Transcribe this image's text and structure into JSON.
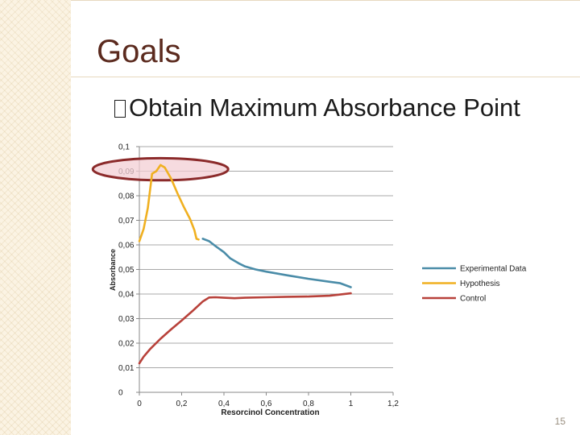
{
  "slide": {
    "title": "Goals",
    "bullet": "Obtain Maximum Absorbance Point",
    "page_number": "15"
  },
  "chart_data": {
    "type": "line",
    "xlabel": "Resorcinol Concentration",
    "ylabel": "Absorbance",
    "xlim": [
      0,
      1.2
    ],
    "ylim": [
      0,
      0.1
    ],
    "x_ticks": [
      "0",
      "0,2",
      "0,4",
      "0,6",
      "0,8",
      "1",
      "1,2"
    ],
    "y_ticks": [
      "0",
      "0,01",
      "0,02",
      "0,03",
      "0,04",
      "0,05",
      "0,06",
      "0,07",
      "0,08",
      "0,09",
      "0,1"
    ],
    "grid": "horizontal",
    "legend_position": "right",
    "series": [
      {
        "name": "Experimental Data",
        "color": "#4a8ca8",
        "points": [
          [
            0.3,
            0.0625
          ],
          [
            0.33,
            0.0615
          ],
          [
            0.36,
            0.0595
          ],
          [
            0.4,
            0.057
          ],
          [
            0.43,
            0.0545
          ],
          [
            0.47,
            0.0525
          ],
          [
            0.5,
            0.0512
          ],
          [
            0.55,
            0.05
          ],
          [
            0.6,
            0.0491
          ],
          [
            0.7,
            0.0476
          ],
          [
            0.8,
            0.0462
          ],
          [
            0.9,
            0.045
          ],
          [
            0.95,
            0.0444
          ],
          [
            1.0,
            0.0428
          ]
        ]
      },
      {
        "name": "Hypothesis",
        "color": "#f0b020",
        "points": [
          [
            0.0,
            0.0615
          ],
          [
            0.02,
            0.0665
          ],
          [
            0.04,
            0.075
          ],
          [
            0.06,
            0.089
          ],
          [
            0.08,
            0.09
          ],
          [
            0.1,
            0.0925
          ],
          [
            0.12,
            0.0915
          ],
          [
            0.15,
            0.087
          ],
          [
            0.18,
            0.081
          ],
          [
            0.21,
            0.0755
          ],
          [
            0.24,
            0.0705
          ],
          [
            0.26,
            0.066
          ],
          [
            0.27,
            0.0625
          ],
          [
            0.28,
            0.0622
          ]
        ]
      },
      {
        "name": "Control",
        "color": "#b8413a",
        "points": [
          [
            0.0,
            0.0118
          ],
          [
            0.02,
            0.0145
          ],
          [
            0.05,
            0.0175
          ],
          [
            0.1,
            0.0218
          ],
          [
            0.15,
            0.0256
          ],
          [
            0.2,
            0.0292
          ],
          [
            0.25,
            0.033
          ],
          [
            0.3,
            0.037
          ],
          [
            0.33,
            0.0386
          ],
          [
            0.36,
            0.0387
          ],
          [
            0.4,
            0.0385
          ],
          [
            0.45,
            0.0383
          ],
          [
            0.5,
            0.0385
          ],
          [
            0.6,
            0.0387
          ],
          [
            0.7,
            0.0389
          ],
          [
            0.8,
            0.039
          ],
          [
            0.9,
            0.0393
          ],
          [
            1.0,
            0.0403
          ]
        ]
      }
    ],
    "highlight": {
      "shape": "ellipse",
      "center": [
        0.1,
        0.0908
      ],
      "radius_x": 0.32,
      "radius_y": 0.0045,
      "stroke": "#8b2a2a",
      "fill": "#f3cfd4"
    }
  }
}
